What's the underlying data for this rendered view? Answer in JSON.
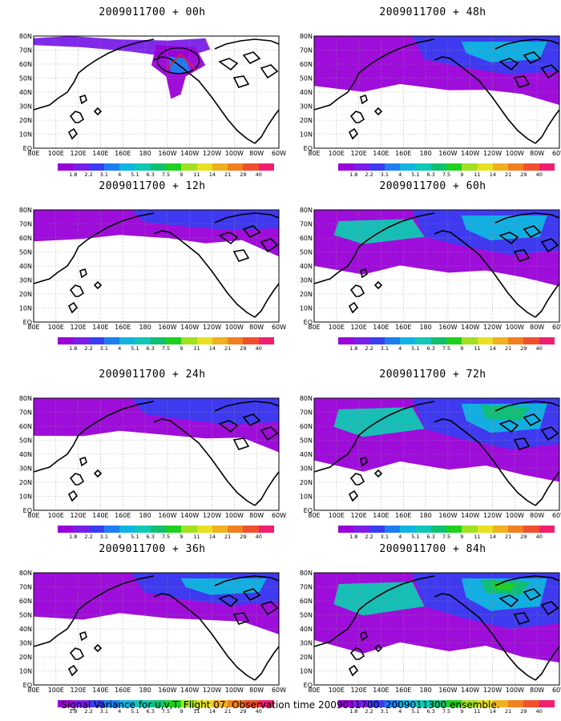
{
  "panels": [
    {
      "title": "2009011700 + 00h",
      "level": 0
    },
    {
      "title": "2009011700 + 48h",
      "level": 4
    },
    {
      "title": "2009011700 + 12h",
      "level": 1
    },
    {
      "title": "2009011700 + 60h",
      "level": 5
    },
    {
      "title": "2009011700 + 24h",
      "level": 2
    },
    {
      "title": "2009011700 + 72h",
      "level": 6
    },
    {
      "title": "2009011700 + 36h",
      "level": 3
    },
    {
      "title": "2009011700 + 84h",
      "level": 7
    }
  ],
  "y_labels": [
    "80N",
    "70N",
    "60N",
    "50N",
    "40N",
    "30N",
    "20N",
    "10N",
    "EQ"
  ],
  "x_labels": [
    "80E",
    "100E",
    "120E",
    "140E",
    "160E",
    "180",
    "160W",
    "140W",
    "120W",
    "100W",
    "80W",
    "60W"
  ],
  "colorbar": {
    "colors": [
      "#9a00d8",
      "#7a1ee8",
      "#3a3df0",
      "#1e7ef0",
      "#10b4e0",
      "#10c8b4",
      "#10c070",
      "#20d020",
      "#a0e020",
      "#e8e020",
      "#f0b020",
      "#f08020",
      "#f05030",
      "#f02070"
    ],
    "labels": [
      "1.8",
      "2.2",
      "3.1",
      "4",
      "5.1",
      "6.3",
      "7.5",
      "9",
      "11",
      "14",
      "21",
      "29",
      "40"
    ]
  },
  "caption": "Signal Variance for u,v,T. Flight 07. Observation time 2009011700. 2009011300 ensemble."
}
